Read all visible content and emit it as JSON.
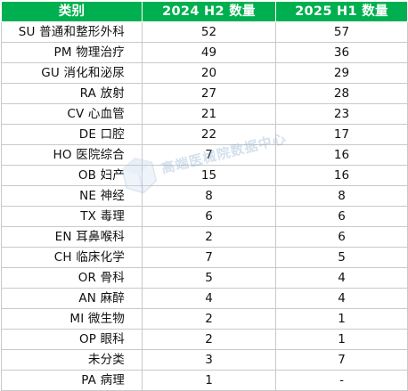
{
  "table": {
    "headers": [
      "类别",
      "2024  H2 数量",
      "2025  H1 数量"
    ],
    "rows": [
      [
        "SU 普通和整形外科",
        "52",
        "57"
      ],
      [
        "PM 物理治疗",
        "49",
        "36"
      ],
      [
        "GU 消化和泌尿",
        "20",
        "29"
      ],
      [
        "RA 放射",
        "27",
        "28"
      ],
      [
        "CV 心血管",
        "21",
        "23"
      ],
      [
        "DE 口腔",
        "22",
        "17"
      ],
      [
        "HO 医院综合",
        "7",
        "16"
      ],
      [
        "OB 妇产",
        "15",
        "16"
      ],
      [
        "NE 神经",
        "8",
        "8"
      ],
      [
        "TX 毒理",
        "6",
        "6"
      ],
      [
        "EN 耳鼻喉科",
        "2",
        "6"
      ],
      [
        "CH 临床化学",
        "7",
        "5"
      ],
      [
        "OR 骨科",
        "5",
        "4"
      ],
      [
        "AN 麻醉",
        "4",
        "4"
      ],
      [
        "MI 微生物",
        "2",
        "1"
      ],
      [
        "OP 眼科",
        "2",
        "1"
      ],
      [
        "未分类",
        "3",
        "7"
      ],
      [
        "PA 病理",
        "1",
        "-"
      ]
    ]
  },
  "watermark": {
    "text": "高端医械院数据中心",
    "icon": "cube-logo-icon"
  },
  "colors": {
    "header_bg": "#00b050",
    "header_text": "#ffffff",
    "grid": "#c9c9c9"
  }
}
